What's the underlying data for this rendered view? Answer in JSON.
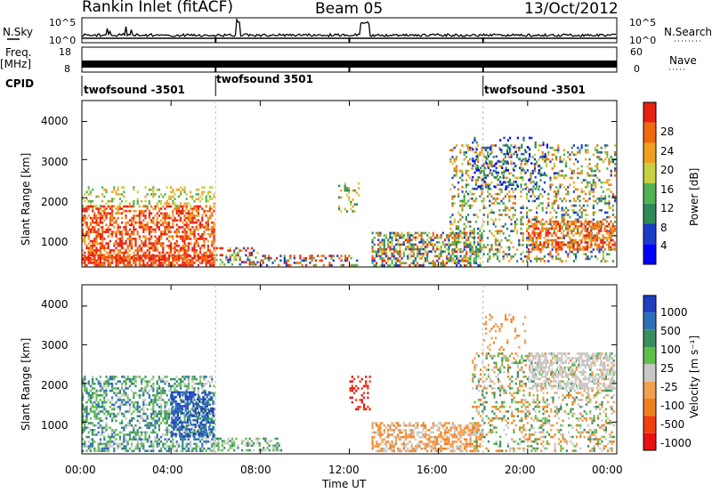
{
  "header": {
    "station": "Rankin Inlet (fitACF)",
    "beam": "Beam 05",
    "date": "13/Oct/2012"
  },
  "left_labels": {
    "nsky": "N.Sky",
    "freq": "Freq.",
    "mhz": "[MHz]",
    "cpid": "CPID"
  },
  "right_labels": {
    "nsearch": "N.Search",
    "nave": "Nave"
  },
  "noise_panel": {
    "ticks_left": [
      "10^5",
      "10^0"
    ],
    "ticks_right": [
      "10^5",
      "10^0"
    ]
  },
  "freq_panel": {
    "ticks_left": [
      "18",
      "8"
    ],
    "ticks_right": [
      "60",
      "0"
    ]
  },
  "cpid_segments": [
    "twofsound -3501",
    "twofsound 3501",
    "twofsound -3501"
  ],
  "chart_data": [
    {
      "type": "heatmap",
      "title": "Power",
      "ylabel": "Slant Range [km]",
      "y_ticks": [
        "1000",
        "2000",
        "3000",
        "4000"
      ],
      "colorbar_label": "Power [dB]",
      "colorbar_ticks": [
        "4",
        "8",
        "12",
        "16",
        "20",
        "24",
        "28"
      ],
      "colors": [
        "#0000ff",
        "#1a3cc8",
        "#2e8b57",
        "#52b152",
        "#c8d040",
        "#f0a020",
        "#f06a10",
        "#e82010"
      ]
    },
    {
      "type": "heatmap",
      "title": "Velocity",
      "ylabel": "Slant Range [km]",
      "y_ticks": [
        "1000",
        "2000",
        "3000",
        "4000"
      ],
      "colorbar_label": "Velocity [m s⁻¹]",
      "colorbar_ticks": [
        "1000",
        "500",
        "100",
        "25",
        "-25",
        "-100",
        "-500",
        "-1000"
      ],
      "colors": [
        "#1f3fbf",
        "#2e6fb8",
        "#3a8e60",
        "#5fbf4a",
        "#c8c8c8",
        "#f0a050",
        "#f07f20",
        "#f04010",
        "#e81010"
      ]
    }
  ],
  "x_axis": {
    "label": "Time UT",
    "ticks": [
      "00:00",
      "04:00",
      "08:00",
      "12:00",
      "16:00",
      "20:00",
      "00:00"
    ]
  }
}
